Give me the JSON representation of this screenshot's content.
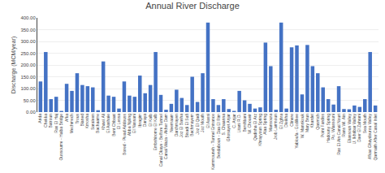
{
  "chart_data": {
    "type": "bar",
    "title": "Annual River Discharge",
    "ylabel": "Discharge (MCM/year)",
    "categories": [
      "Arida",
      "Chekka",
      "Batroun",
      "Ras El Haj",
      "Oussoume - Halba Bridge",
      "Afka",
      "Mechmech",
      "Trous",
      "Blaned",
      "Kmosha",
      "Saraleen",
      "Bachaame",
      "Khawi Ali",
      "El Aashaie",
      "Bent Chbaat",
      "El Lessa",
      "Bored - Pivad Addouss",
      "Abba Npling",
      "El Nassani",
      "Ibragim",
      "Daraya",
      "El Kalb",
      "Embshirome El Kalb",
      "Canal Dkaye - Belfore Tunnel",
      "Canal Waza - Akher Dam",
      "Neemaam",
      "Darchmayen",
      "Joz El Basha",
      "Bisadi El Safi",
      "Bachmayem",
      "Joz El Qadi",
      "Joz Mouth",
      "El Aassi",
      "Kammouneh - Tunnel Entrance",
      "Bendaboun - Daa El Rim",
      "S. Chaanna",
      "Ghosayet Anjar",
      "C. Anjar",
      "Litani R.D.",
      "Bershbani",
      "W. Choueir",
      "Qadisha El Arz",
      "Khrayyoun Spring",
      "Alaa Spring",
      "Mansoura",
      "Jrob Lamnoun",
      "El Zghra",
      "Dleikha",
      "Clinere",
      "Yabloufa - Ecdilkee",
      "W. Mannkouk",
      "Mary Brun",
      "Khardet",
      "Qasmich",
      "Point Fardiss",
      "Hadouny Spring",
      "Po. Wlassouni",
      "Ras El Ain Canal Nouri",
      "Rans Wl. Ain",
      "Eliassoun Valley",
      "U. Ikhtibar Valley",
      "Daer El Zahrani",
      "Sea Mouth",
      "Afkao Ghaydourou Valley",
      "Qarmaith After Canal Inlet"
    ],
    "values": [
      130,
      255,
      55,
      65,
      5,
      120,
      90,
      165,
      115,
      110,
      105,
      8,
      215,
      70,
      65,
      15,
      130,
      70,
      65,
      155,
      80,
      115,
      255,
      73,
      10,
      35,
      95,
      60,
      30,
      150,
      43,
      165,
      380,
      55,
      30,
      55,
      13,
      5,
      90,
      50,
      35,
      15,
      20,
      295,
      195,
      10,
      380,
      15,
      275,
      283,
      75,
      285,
      195,
      165,
      105,
      55,
      32,
      110,
      13,
      12,
      28,
      22,
      55,
      255,
      28
    ],
    "color": "#4472c4",
    "ylim": [
      0,
      400
    ],
    "yticks": [
      {
        "value": 0,
        "label": "0.00"
      },
      {
        "value": 50,
        "label": "50.00"
      },
      {
        "value": 100,
        "label": "100.00"
      },
      {
        "value": 150,
        "label": "150.00"
      },
      {
        "value": 200,
        "label": "200.00"
      },
      {
        "value": 250,
        "label": "250.00"
      },
      {
        "value": 300,
        "label": "300.00"
      },
      {
        "value": 350,
        "label": "350.00"
      },
      {
        "value": 400,
        "label": "400.00"
      }
    ],
    "grid": true
  }
}
